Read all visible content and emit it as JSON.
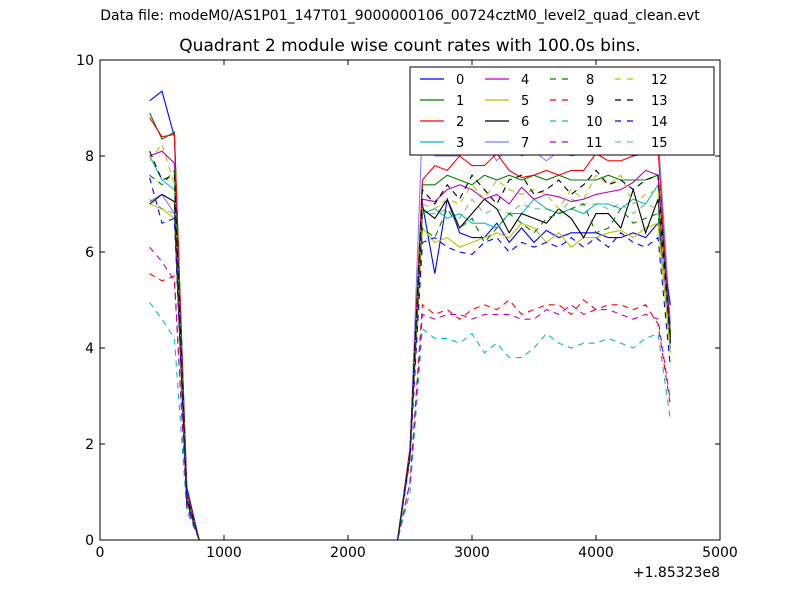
{
  "suptitle": "Data file: modeM0/AS1P01_147T01_9000000106_00724cztM0_level2_quad_clean.evt",
  "chart_data": {
    "type": "line",
    "title": "Quadrant 2 module wise count rates with 100.0s bins.",
    "xlabel": "",
    "ylabel": "",
    "x_offset_label": "+1.85323e8",
    "xlim": [
      0,
      5000
    ],
    "ylim": [
      0,
      10
    ],
    "x_ticks": [
      0,
      1000,
      2000,
      3000,
      4000,
      5000
    ],
    "y_ticks": [
      0,
      2,
      4,
      6,
      8,
      10
    ],
    "grid": false,
    "legend_position": "top-right",
    "legend_columns": 4,
    "x": [
      400,
      500,
      600,
      700,
      800,
      900,
      1000,
      1100,
      1200,
      1300,
      1400,
      1500,
      1600,
      1700,
      1800,
      1900,
      2000,
      2100,
      2200,
      2300,
      2400,
      2500,
      2600,
      2700,
      2800,
      2900,
      3000,
      3100,
      3200,
      3300,
      3400,
      3500,
      3600,
      3700,
      3800,
      3900,
      4000,
      4100,
      4200,
      4300,
      4400,
      4500,
      4600
    ],
    "series": [
      {
        "name": "0",
        "color": "#0000ff",
        "dash": "solid",
        "opacity": 1.0,
        "on": [
          9.15,
          9.35,
          8.4,
          1.1
        ],
        "off": [
          1.9,
          7.0,
          5.55,
          7.1,
          6.4,
          6.3,
          6.3,
          6.6,
          6.2,
          6.5,
          6.2,
          6.45,
          6.3,
          6.4,
          6.4,
          6.4,
          6.3,
          6.3,
          6.4,
          6.3,
          6.6,
          4.9
        ]
      },
      {
        "name": "1",
        "color": "#008000",
        "dash": "solid",
        "opacity": 1.0,
        "on": [
          8.9,
          8.35,
          8.5,
          1.0
        ],
        "off": [
          1.9,
          7.4,
          7.4,
          7.6,
          7.5,
          7.4,
          7.6,
          7.5,
          7.6,
          7.5,
          7.6,
          7.5,
          7.6,
          7.5,
          7.5,
          7.5,
          7.6,
          7.5,
          7.5,
          7.5,
          7.6,
          4.3
        ]
      },
      {
        "name": "2",
        "color": "#ff0000",
        "dash": "solid",
        "opacity": 1.0,
        "on": [
          8.8,
          8.4,
          8.45,
          1.0
        ],
        "off": [
          1.9,
          7.5,
          7.8,
          7.7,
          8.0,
          7.8,
          7.8,
          8.05,
          7.7,
          7.55,
          7.6,
          7.7,
          7.6,
          7.7,
          7.7,
          8.05,
          7.9,
          7.9,
          8.0,
          8.05,
          8.15,
          4.2
        ]
      },
      {
        "name": "3",
        "color": "#00bfbf",
        "dash": "solid",
        "opacity": 1.0,
        "on": [
          8.0,
          7.5,
          7.3,
          0.9
        ],
        "off": [
          1.8,
          6.8,
          6.9,
          6.7,
          6.8,
          6.6,
          6.6,
          6.5,
          6.8,
          6.8,
          7.1,
          6.9,
          6.8,
          6.9,
          6.8,
          7.0,
          7.0,
          6.9,
          7.1,
          7.0,
          7.4,
          4.1
        ]
      },
      {
        "name": "4",
        "color": "#bf00bf",
        "dash": "solid",
        "opacity": 1.0,
        "on": [
          8.0,
          8.1,
          7.85,
          0.9
        ],
        "off": [
          1.8,
          7.1,
          7.05,
          7.3,
          7.4,
          7.3,
          7.1,
          7.2,
          7.0,
          7.35,
          7.1,
          7.2,
          7.15,
          7.05,
          7.1,
          7.2,
          7.25,
          7.3,
          7.45,
          7.7,
          7.6,
          4.3
        ]
      },
      {
        "name": "5",
        "color": "#bfbf00",
        "dash": "solid",
        "opacity": 1.0,
        "on": [
          7.0,
          6.9,
          6.7,
          0.8
        ],
        "off": [
          1.7,
          6.5,
          6.2,
          6.3,
          6.1,
          6.2,
          6.3,
          6.4,
          6.3,
          6.6,
          6.5,
          6.2,
          6.4,
          6.1,
          6.3,
          6.3,
          6.4,
          6.45,
          6.3,
          6.5,
          6.6,
          3.9
        ]
      },
      {
        "name": "6",
        "color": "#000000",
        "dash": "solid",
        "opacity": 1.0,
        "on": [
          7.0,
          7.2,
          7.05,
          0.85
        ],
        "off": [
          1.8,
          6.9,
          6.7,
          7.1,
          6.5,
          6.8,
          7.1,
          6.9,
          6.4,
          6.8,
          6.7,
          6.6,
          6.9,
          6.7,
          6.3,
          6.8,
          6.8,
          6.5,
          7.3,
          6.4,
          7.1,
          4.2
        ]
      },
      {
        "name": "7",
        "color": "#0000ff",
        "dash": "solid",
        "opacity": 0.5,
        "on": [
          7.05,
          7.2,
          6.8,
          0.8
        ],
        "off": [
          1.8,
          8.7,
          8.0,
          8.0,
          8.0,
          8.6,
          8.3,
          7.9,
          8.2,
          8.0,
          8.1,
          7.9,
          8.1,
          8.0,
          8.05,
          8.3,
          8.05,
          8.2,
          8.0,
          8.1,
          8.5,
          4.5
        ]
      },
      {
        "name": "8",
        "color": "#008000",
        "dash": "dashed",
        "opacity": 1.0,
        "on": [
          7.6,
          7.4,
          7.7,
          0.9
        ],
        "off": [
          1.7,
          6.5,
          6.3,
          6.9,
          6.5,
          6.7,
          6.2,
          6.5,
          6.8,
          6.6,
          6.4,
          6.7,
          6.8,
          6.9,
          7.0,
          6.4,
          6.5,
          6.9,
          6.6,
          6.7,
          6.8,
          4.3
        ]
      },
      {
        "name": "9",
        "color": "#ff0000",
        "dash": "dashed",
        "opacity": 1.0,
        "on": [
          5.55,
          5.4,
          5.5,
          0.7
        ],
        "off": [
          1.2,
          4.9,
          4.7,
          4.8,
          4.6,
          4.8,
          4.9,
          4.8,
          5.0,
          4.7,
          4.8,
          4.9,
          4.9,
          4.7,
          5.0,
          4.8,
          4.9,
          4.9,
          4.8,
          4.9,
          4.5,
          2.8
        ]
      },
      {
        "name": "10",
        "color": "#00bfbf",
        "dash": "dashed",
        "opacity": 1.0,
        "on": [
          4.95,
          4.6,
          4.2,
          0.6
        ],
        "off": [
          1.0,
          4.4,
          4.2,
          4.2,
          4.1,
          4.3,
          3.9,
          4.1,
          3.8,
          3.8,
          4.0,
          4.3,
          4.1,
          4.0,
          4.1,
          4.1,
          4.2,
          4.1,
          4.0,
          4.2,
          4.3,
          2.5
        ]
      },
      {
        "name": "11",
        "color": "#bf00bf",
        "dash": "dashed",
        "opacity": 1.0,
        "on": [
          6.1,
          5.8,
          5.4,
          0.7
        ],
        "off": [
          1.2,
          4.7,
          4.6,
          4.7,
          4.7,
          4.6,
          4.7,
          4.7,
          4.7,
          4.6,
          4.6,
          4.8,
          4.7,
          4.9,
          4.7,
          4.8,
          4.8,
          4.7,
          4.6,
          4.7,
          4.6,
          2.9
        ]
      },
      {
        "name": "12",
        "color": "#bfbf00",
        "dash": "dashed",
        "opacity": 1.0,
        "on": [
          7.9,
          8.25,
          7.4,
          0.9
        ],
        "off": [
          1.8,
          7.0,
          6.9,
          7.1,
          7.0,
          7.4,
          7.1,
          7.5,
          7.3,
          7.2,
          7.3,
          7.2,
          6.9,
          7.3,
          7.1,
          7.6,
          7.4,
          7.6,
          7.0,
          7.2,
          7.3,
          4.0
        ]
      },
      {
        "name": "13",
        "color": "#000000",
        "dash": "dashed",
        "opacity": 1.0,
        "on": [
          8.1,
          7.5,
          7.6,
          0.9
        ],
        "off": [
          1.8,
          7.3,
          7.0,
          7.4,
          7.1,
          7.6,
          7.3,
          7.0,
          7.5,
          7.6,
          7.2,
          7.3,
          7.5,
          7.2,
          7.4,
          7.7,
          7.4,
          7.5,
          7.3,
          7.5,
          7.6,
          4.1
        ]
      },
      {
        "name": "14",
        "color": "#0000ff",
        "dash": "dashed",
        "opacity": 1.0,
        "on": [
          7.55,
          6.6,
          6.7,
          0.8
        ],
        "off": [
          1.7,
          6.2,
          6.3,
          6.1,
          6.0,
          5.95,
          6.2,
          6.3,
          6.0,
          6.2,
          6.1,
          6.2,
          6.1,
          6.3,
          6.1,
          6.3,
          6.1,
          6.4,
          6.2,
          6.1,
          6.3,
          3.6
        ]
      },
      {
        "name": "15",
        "color": "#008000",
        "dash": "dashed",
        "opacity": 0.5,
        "on": [
          7.1,
          6.9,
          6.8,
          0.8
        ],
        "off": [
          1.7,
          6.8,
          6.8,
          6.9,
          6.7,
          7.1,
          6.8,
          6.9,
          6.8,
          7.0,
          6.9,
          6.9,
          6.8,
          7.1,
          7.0,
          7.0,
          6.9,
          7.0,
          6.8,
          7.0,
          6.9,
          4.0
        ]
      }
    ]
  }
}
